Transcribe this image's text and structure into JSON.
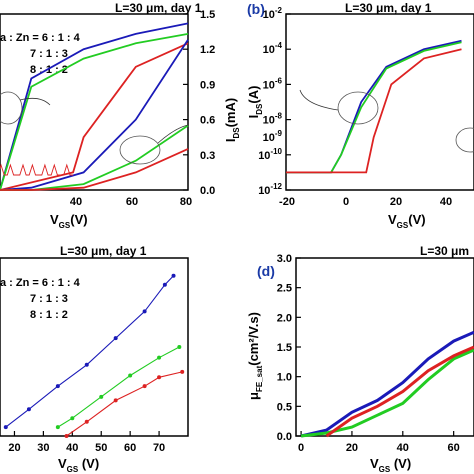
{
  "colors": {
    "blue": "#1a1ab8",
    "green": "#22cc22",
    "red": "#dd2222",
    "axis": "#000000",
    "label_blue": "#1a3aa6"
  },
  "panels": {
    "a": {
      "title": "L=30 μm, day 1",
      "legend": [
        "a : Zn = 6 : 1 : 4",
        "7 : 1 : 3",
        "8 : 1 : 2"
      ],
      "x_tick_labels": [
        "40",
        "60",
        "80"
      ],
      "x_label_main": "V",
      "x_label_sub": "GS",
      "x_label_unit": "(V)",
      "right_tick_labels": [
        "0.0",
        "0.3",
        "0.6",
        "0.9",
        "1.2",
        "1.5"
      ],
      "right_label_main": "I",
      "right_label_sub": "DS",
      "right_label_unit": "(mA)"
    },
    "b": {
      "label": "(b)",
      "title": "L=30 μm, day 1",
      "y_label_main": "I",
      "y_label_sub": "DS",
      "y_label_unit": "(A)",
      "y_tick_base": "10",
      "y_tick_exponents": [
        "-2",
        "-4",
        "-6",
        "-8",
        "-10",
        "-12"
      ],
      "y_tick_extra": "10",
      "y_tick_extra_exp": "-9",
      "x_tick_labels": [
        "-20",
        "0",
        "20",
        "40"
      ],
      "x_label_main": "V",
      "x_label_sub": "GS",
      "x_label_unit": "(V)"
    },
    "c": {
      "title": "L=30 μm, day 1",
      "legend": [
        "a : Zn = 6 : 1 : 4",
        "7 : 1 : 3",
        "8 : 1 : 2"
      ],
      "x_tick_labels": [
        "20",
        "30",
        "40",
        "50",
        "60",
        "70"
      ],
      "x_label_main": "V",
      "x_label_sub": "GS",
      "x_label_unit": " (V)"
    },
    "d": {
      "label": "(d)",
      "title": "L=30 μm",
      "y_label_main": "μ",
      "y_label_sub": "FE_sat",
      "y_label_unit": "(cm²/V.s)",
      "y_tick_labels": [
        "0.0",
        "0.5",
        "1.0",
        "1.5",
        "2.0",
        "2.5",
        "3.0"
      ],
      "x_tick_labels": [
        "0",
        "20",
        "40",
        "60"
      ],
      "x_label_main": "V",
      "x_label_sub": "GS",
      "x_label_unit": " (V)"
    }
  },
  "chart_data": [
    {
      "panel": "a",
      "type": "line",
      "title": "L=30 μm, day 1",
      "xlabel": "VGS(V)",
      "ylabel_right": "IDS(mA)",
      "xlim": [
        8,
        80
      ],
      "ylim_right": [
        0,
        1.5
      ],
      "series": [
        {
          "name": "6 : 1 : 4",
          "color": "blue",
          "x": [
            8,
            20,
            40,
            60,
            80
          ],
          "y": [
            0.0,
            0.02,
            0.15,
            0.6,
            1.28
          ]
        },
        {
          "name": "7 : 1 : 3",
          "color": "green",
          "x": [
            8,
            20,
            40,
            60,
            80
          ],
          "y": [
            0.0,
            0.0,
            0.05,
            0.25,
            0.55
          ]
        },
        {
          "name": "8 : 1 : 2",
          "color": "red",
          "x": [
            8,
            20,
            40,
            60,
            80
          ],
          "y": [
            0.0,
            0.0,
            0.02,
            0.15,
            0.35
          ]
        }
      ],
      "log_current_left_axis": {
        "series": [
          {
            "name": "6 : 1 : 4",
            "color": "blue",
            "x": [
              8,
              20,
              40,
              60,
              80
            ],
            "y": [
              0.0,
              0.95,
              1.2,
              1.33,
              1.42
            ]
          },
          {
            "name": "7 : 1 : 3",
            "color": "green",
            "x": [
              8,
              20,
              40,
              60,
              80
            ],
            "y": [
              0.0,
              0.88,
              1.12,
              1.25,
              1.33
            ]
          },
          {
            "name": "8 : 1 : 2",
            "color": "red",
            "x": [
              8,
              36,
              40,
              60,
              80
            ],
            "y": [
              0.0,
              0.15,
              0.45,
              1.05,
              1.25
            ]
          }
        ]
      }
    },
    {
      "panel": "b",
      "type": "line",
      "title": "L=30 μm, day 1",
      "xlabel": "VGS(V)",
      "ylabel": "IDS(A)",
      "yscale": "log",
      "xlim": [
        -20,
        55
      ],
      "ylim": [
        1e-12,
        0.01
      ],
      "series": [
        {
          "name": "6 : 1 : 4",
          "color": "blue",
          "x": [
            -20,
            -2,
            2,
            10,
            20,
            35,
            50
          ],
          "y": [
            1e-11,
            1e-11,
            1e-10,
            1e-07,
            1e-05,
            0.0001,
            0.0003
          ]
        },
        {
          "name": "7 : 1 : 3",
          "color": "green",
          "x": [
            -20,
            -2,
            2,
            10,
            20,
            35,
            50
          ],
          "y": [
            1e-11,
            1e-11,
            1e-10,
            5e-08,
            8e-06,
            8e-05,
            0.00025
          ]
        },
        {
          "name": "8 : 1 : 2",
          "color": "red",
          "x": [
            -20,
            12,
            15,
            22,
            35,
            50
          ],
          "y": [
            1e-11,
            1e-11,
            1e-09,
            1e-06,
            3e-05,
            0.0001
          ]
        }
      ]
    },
    {
      "panel": "c",
      "type": "scatter",
      "title": "L=30 μm, day 1",
      "xlabel": "VGS (V)",
      "xlim": [
        15,
        80
      ],
      "series": [
        {
          "name": "6 : 1 : 4",
          "color": "blue",
          "x": [
            17,
            25,
            35,
            45,
            55,
            65,
            72,
            75
          ],
          "y": [
            0.05,
            0.15,
            0.28,
            0.4,
            0.55,
            0.7,
            0.85,
            0.9
          ]
        },
        {
          "name": "7 : 1 : 3",
          "color": "green",
          "x": [
            35,
            40,
            50,
            60,
            70,
            77
          ],
          "y": [
            0.05,
            0.1,
            0.22,
            0.34,
            0.44,
            0.5
          ]
        },
        {
          "name": "8 : 1 : 2",
          "color": "red",
          "x": [
            38,
            45,
            55,
            65,
            70,
            78
          ],
          "y": [
            0.0,
            0.08,
            0.2,
            0.28,
            0.33,
            0.36
          ]
        }
      ]
    },
    {
      "panel": "d",
      "type": "scatter",
      "title": "L=30 μm",
      "xlabel": "VGS (V)",
      "ylabel": "μFE_sat(cm²/V.s)",
      "xlim": [
        -2,
        68
      ],
      "ylim": [
        0,
        3.0
      ],
      "series": [
        {
          "name": "6 : 1 : 4",
          "color": "blue",
          "x": [
            0,
            10,
            20,
            30,
            40,
            50,
            60,
            68
          ],
          "y": [
            0.0,
            0.1,
            0.4,
            0.6,
            0.9,
            1.3,
            1.6,
            1.75
          ]
        },
        {
          "name": "7 : 1 : 3",
          "color": "green",
          "x": [
            0,
            10,
            20,
            30,
            40,
            50,
            60,
            68
          ],
          "y": [
            0.0,
            0.05,
            0.15,
            0.35,
            0.55,
            0.95,
            1.3,
            1.45
          ]
        },
        {
          "name": "8 : 1 : 2",
          "color": "red",
          "x": [
            10,
            20,
            30,
            40,
            50,
            60,
            68
          ],
          "y": [
            0.0,
            0.3,
            0.5,
            0.75,
            1.1,
            1.35,
            1.5
          ]
        }
      ]
    }
  ]
}
